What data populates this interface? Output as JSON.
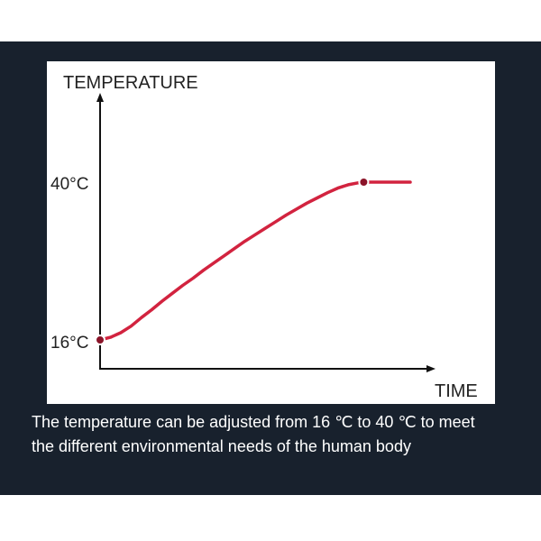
{
  "chart_data": {
    "type": "line",
    "ylabel": "TEMPERATURE",
    "xlabel": "TIME",
    "tick_labels": [
      "40°C",
      "16°C"
    ],
    "series": [
      {
        "points": [
          {
            "x": 0,
            "y": 16
          },
          {
            "x": 1,
            "y": 16.4
          },
          {
            "x": 2,
            "y": 17.1
          },
          {
            "x": 3,
            "y": 18.1
          },
          {
            "x": 4,
            "y": 19.4
          },
          {
            "x": 5,
            "y": 20.6
          },
          {
            "x": 6,
            "y": 21.9
          },
          {
            "x": 7,
            "y": 23.1
          },
          {
            "x": 8,
            "y": 24.3
          },
          {
            "x": 9,
            "y": 25.4
          },
          {
            "x": 10,
            "y": 26.6
          },
          {
            "x": 11,
            "y": 27.7
          },
          {
            "x": 12,
            "y": 28.8
          },
          {
            "x": 13,
            "y": 29.9
          },
          {
            "x": 14,
            "y": 31
          },
          {
            "x": 15,
            "y": 32
          },
          {
            "x": 16,
            "y": 33
          },
          {
            "x": 17,
            "y": 34
          },
          {
            "x": 18,
            "y": 35
          },
          {
            "x": 19,
            "y": 35.9
          },
          {
            "x": 20,
            "y": 36.8
          },
          {
            "x": 21,
            "y": 37.6
          },
          {
            "x": 22,
            "y": 38.4
          },
          {
            "x": 23,
            "y": 39.1
          },
          {
            "x": 24,
            "y": 39.6
          },
          {
            "x": 25,
            "y": 39.9
          },
          {
            "x": 25.5,
            "y": 40
          },
          {
            "x": 30,
            "y": 40
          }
        ],
        "markers": [
          {
            "x": 0,
            "y": 16
          },
          {
            "x": 25.5,
            "y": 40
          }
        ]
      }
    ]
  },
  "caption": {
    "line1": "The temperature can be adjusted from 16 ℃ to 40 ℃ to meet",
    "line2": "the different environmental needs of the human body"
  },
  "colors": {
    "background": "#18212d",
    "line": "#d2233f",
    "marker_fill": "#8b1429"
  }
}
